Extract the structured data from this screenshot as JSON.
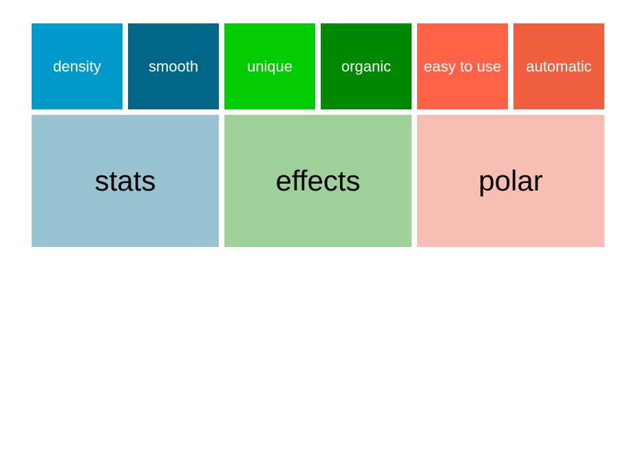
{
  "subcategories": [
    {
      "label": "density",
      "color": "#0099CC"
    },
    {
      "label": "smooth",
      "color": "#006688"
    },
    {
      "label": "unique",
      "color": "#00CC00"
    },
    {
      "label": "organic",
      "color": "#008800"
    },
    {
      "label": "easy to use",
      "color": "#FF6347"
    },
    {
      "label": "automatic",
      "color": "#F05E40"
    }
  ],
  "categories": [
    {
      "label": "stats",
      "color": "#9AC3D1"
    },
    {
      "label": "effects",
      "color": "#9ED19A"
    },
    {
      "label": "polar",
      "color": "#F8BEB3"
    }
  ]
}
